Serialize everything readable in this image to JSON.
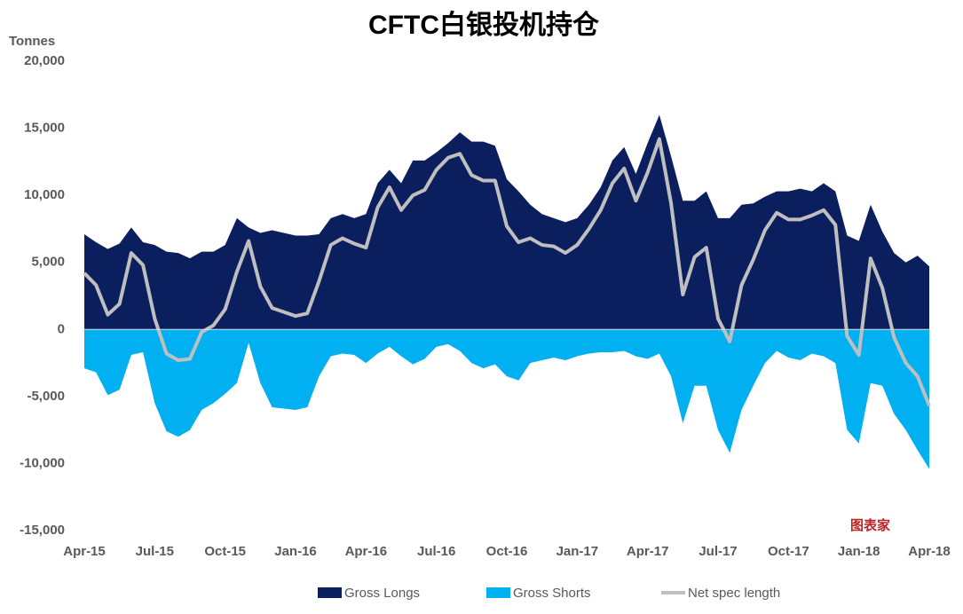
{
  "chart_data": {
    "type": "area-line",
    "title": "CFTC白银投机持仓",
    "y_axis_label": "Tonnes",
    "watermark": "图表家",
    "categories": [
      "Apr-15",
      null,
      null,
      null,
      null,
      null,
      "Jul-15",
      null,
      null,
      null,
      null,
      null,
      "Oct-15",
      null,
      null,
      null,
      null,
      null,
      "Jan-16",
      null,
      null,
      null,
      null,
      null,
      "Apr-16",
      null,
      null,
      null,
      null,
      null,
      "Jul-16",
      null,
      null,
      null,
      null,
      null,
      "Oct-16",
      null,
      null,
      null,
      null,
      null,
      "Jan-17",
      null,
      null,
      null,
      null,
      null,
      "Apr-17",
      null,
      null,
      null,
      null,
      null,
      "Jul-17",
      null,
      null,
      null,
      null,
      null,
      "Oct-17",
      null,
      null,
      null,
      null,
      null,
      "Jan-18",
      null,
      null,
      null,
      null,
      null,
      "Apr-18"
    ],
    "series": [
      {
        "name": "Gross Longs",
        "color": "#0b1f5e",
        "mark": "area",
        "values": [
          7100,
          6500,
          6000,
          6400,
          7600,
          6500,
          6300,
          5800,
          5700,
          5300,
          5800,
          5800,
          6300,
          8300,
          7600,
          7200,
          7400,
          7200,
          7000,
          7000,
          7100,
          8300,
          8600,
          8300,
          8600,
          10900,
          11900,
          10900,
          12600,
          12600,
          13200,
          13900,
          14700,
          14000,
          14000,
          13700,
          11200,
          10300,
          9300,
          8600,
          8300,
          8000,
          8300,
          9300,
          10600,
          12600,
          13600,
          11600,
          13900,
          16000,
          12900,
          9600,
          9600,
          10300,
          8300,
          8300,
          9300,
          9400,
          9900,
          10300,
          10300,
          10500,
          10300,
          10900,
          10300,
          7000,
          6600,
          9300,
          7300,
          5700,
          5000,
          5500,
          4700
        ]
      },
      {
        "name": "Gross Shorts",
        "color": "#00b0f0",
        "mark": "area",
        "values": [
          -2900,
          -3200,
          -4900,
          -4500,
          -1900,
          -1700,
          -5500,
          -7600,
          -8000,
          -7500,
          -6000,
          -5500,
          -4800,
          -4000,
          -1000,
          -4000,
          -5800,
          -5900,
          -6000,
          -5800,
          -3500,
          -2000,
          -1800,
          -1900,
          -2500,
          -1800,
          -1300,
          -2000,
          -2600,
          -2200,
          -1300,
          -1100,
          -1600,
          -2500,
          -2900,
          -2600,
          -3500,
          -3800,
          -2500,
          -2300,
          -2100,
          -2300,
          -2000,
          -1800,
          -1700,
          -1700,
          -1600,
          -2000,
          -2200,
          -1800,
          -3500,
          -7000,
          -4200,
          -4200,
          -7500,
          -9200,
          -6000,
          -4200,
          -2500,
          -1600,
          -2100,
          -2300,
          -1800,
          -2000,
          -2500,
          -7500,
          -8500,
          -4000,
          -4200,
          -6300,
          -7500,
          -9000,
          -10400
        ]
      },
      {
        "name": "Net spec length",
        "color": "#bfbfbf",
        "mark": "line",
        "values": [
          4200,
          3300,
          1100,
          1900,
          5700,
          4800,
          800,
          -1800,
          -2300,
          -2200,
          -200,
          300,
          1500,
          4300,
          6600,
          3200,
          1600,
          1300,
          1000,
          1200,
          3600,
          6300,
          6800,
          6400,
          6100,
          9100,
          10600,
          8900,
          10000,
          10400,
          11900,
          12800,
          13100,
          11500,
          11100,
          11100,
          7700,
          6500,
          6800,
          6300,
          6200,
          5700,
          6300,
          7500,
          8900,
          10900,
          12000,
          9600,
          11700,
          14200,
          9400,
          2600,
          5400,
          6100,
          800,
          -900,
          3300,
          5200,
          7400,
          8700,
          8200,
          8200,
          8500,
          8900,
          7800,
          -500,
          -1900,
          5300,
          3100,
          -600,
          -2500,
          -3500,
          -5700
        ]
      }
    ],
    "ylim": [
      -15000,
      20000
    ],
    "yticks": [
      {
        "value": -15000,
        "label": "-15,000"
      },
      {
        "value": -10000,
        "label": "-10,000"
      },
      {
        "value": -5000,
        "label": "-5,000"
      },
      0,
      {
        "value": 5000,
        "label": "5,000"
      },
      {
        "value": 10000,
        "label": "10,000"
      },
      {
        "value": 15000,
        "label": "15,000"
      },
      {
        "value": 20000,
        "label": "20,000"
      }
    ],
    "grid": false,
    "legend": "bottom"
  }
}
